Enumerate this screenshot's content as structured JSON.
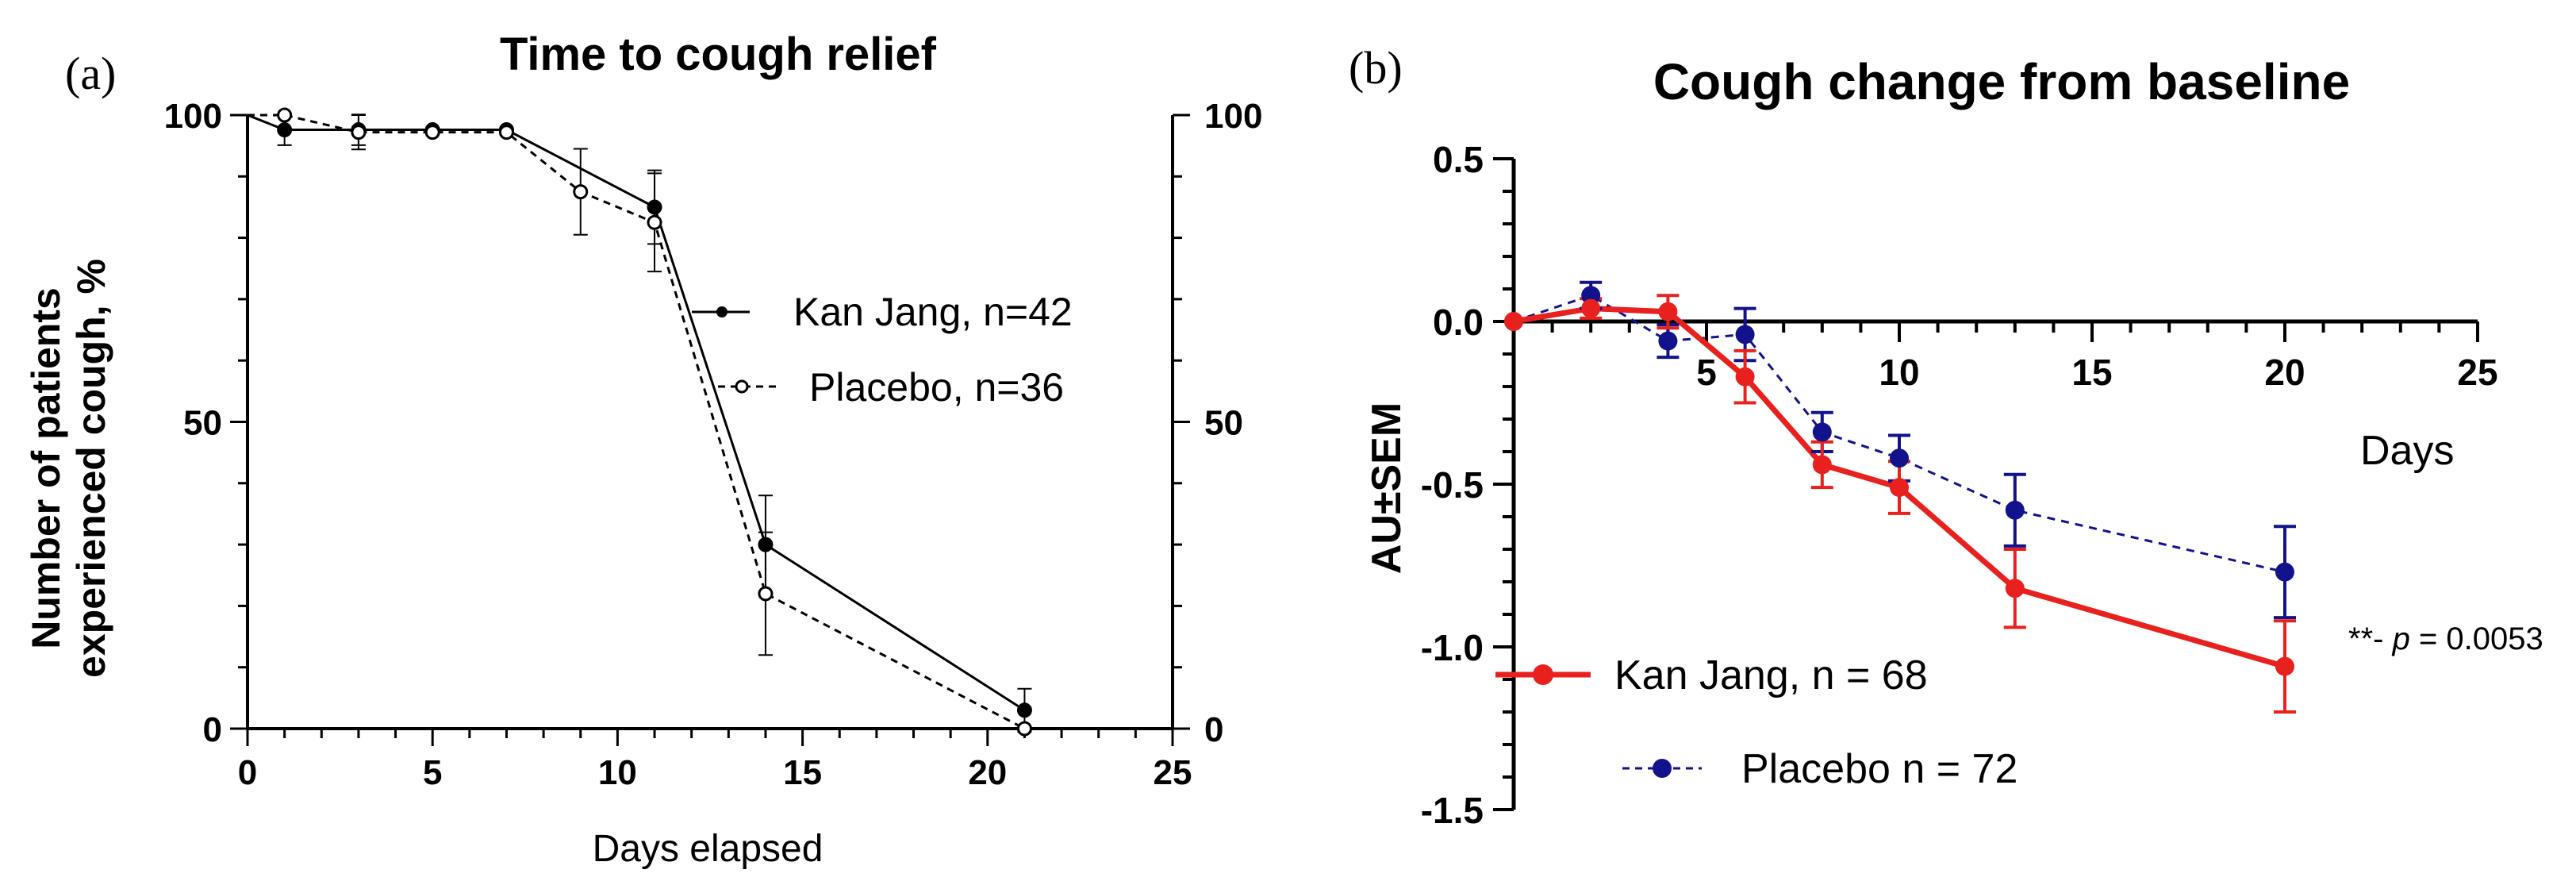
{
  "panel_labels": {
    "a": "(a)",
    "b": "(b)"
  },
  "chart_data": [
    {
      "type": "line",
      "title": "Time to cough relief",
      "xlabel": "Days elapsed",
      "ylabel_line1": "Number of patients",
      "ylabel_line2": "experienced cough, %",
      "xlim": [
        0,
        25
      ],
      "ylim": [
        0,
        100
      ],
      "xticks": [
        0,
        5,
        10,
        15,
        20,
        25
      ],
      "yticks": [
        0,
        50,
        100
      ],
      "right_yticks": [
        0,
        50,
        100
      ],
      "series": [
        {
          "name": "Kan Jang, n=42",
          "style": "solid",
          "color": "#000000",
          "marker": "filled-circle",
          "x": [
            0,
            1,
            3,
            5,
            7,
            11,
            14,
            21
          ],
          "y": [
            100,
            97.6,
            97.6,
            97.6,
            97.6,
            85.0,
            30.0,
            3.0
          ],
          "err": [
            0,
            2.5,
            2.5,
            0,
            0,
            6,
            8,
            3.5
          ]
        },
        {
          "name": "Placebo, n=36",
          "style": "dashed",
          "color": "#000000",
          "marker": "open-circle",
          "x": [
            0,
            1,
            3,
            5,
            7,
            9,
            11,
            14,
            21
          ],
          "y": [
            100,
            100,
            97.2,
            97.2,
            97.2,
            87.5,
            82.5,
            22.0,
            0
          ],
          "err": [
            0,
            0,
            2.8,
            0,
            0,
            7,
            8,
            10,
            0
          ]
        }
      ]
    },
    {
      "type": "line",
      "title": "Cough change from baseline",
      "xlabel": "Days",
      "ylabel": "AU±SEM",
      "xlim": [
        0,
        25
      ],
      "ylim": [
        -1.5,
        0.5
      ],
      "xticks": [
        5,
        10,
        15,
        20,
        25
      ],
      "yticks": [
        0.5,
        0.0,
        -0.5,
        -1.0,
        -1.5
      ],
      "ytick_labels": [
        "0.5",
        "0.0",
        "-0.5",
        "-1.0",
        "-1.5"
      ],
      "annotation": {
        "stars": "**- ",
        "p": "p",
        "rest": " = 0.0053"
      },
      "series": [
        {
          "name": "Kan Jang, n = 68",
          "style": "solid",
          "color": "#e8211f",
          "marker": "filled-circle",
          "x": [
            0,
            2,
            4,
            6,
            8,
            10,
            13,
            20
          ],
          "y": [
            0.0,
            0.04,
            0.03,
            -0.17,
            -0.44,
            -0.51,
            -0.82,
            -1.06
          ],
          "err": [
            0,
            0.03,
            0.05,
            0.08,
            0.07,
            0.08,
            0.12,
            0.14
          ]
        },
        {
          "name": "Placebo n = 72",
          "style": "dashed",
          "color": "#12128c",
          "marker": "filled-circle",
          "x": [
            0,
            2,
            4,
            6,
            8,
            10,
            13,
            20
          ],
          "y": [
            0.0,
            0.08,
            -0.06,
            -0.04,
            -0.34,
            -0.42,
            -0.58,
            -0.77
          ],
          "err": [
            0,
            0.04,
            0.05,
            0.08,
            0.06,
            0.07,
            0.11,
            0.14
          ]
        }
      ]
    }
  ]
}
